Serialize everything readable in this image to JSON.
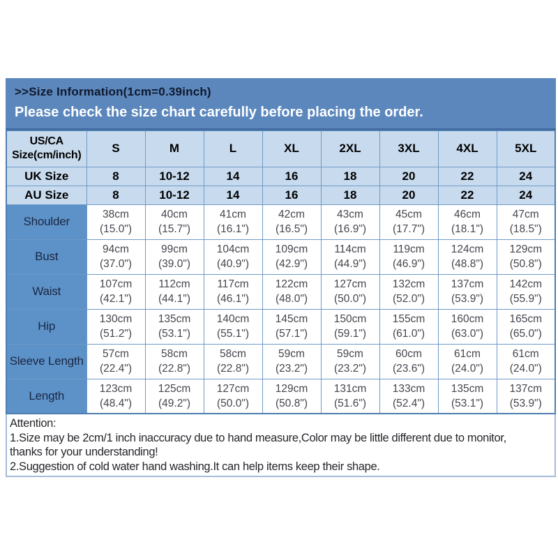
{
  "colors": {
    "banner_blue": "#5b87bd",
    "light_cell_blue": "#c8dbee",
    "label_cell_blue": "#5d92c9",
    "table_border_blue": "#6f9ac6",
    "notice_text": "#ffffff"
  },
  "banner": {
    "title": ">>Size Information(1cm=0.39inch)",
    "notice": "Please check the size chart carefully before placing the order."
  },
  "size_table": {
    "corner": {
      "line1": "US/CA",
      "line2": "Size(cm/inch)"
    },
    "columns": [
      "S",
      "M",
      "L",
      "XL",
      "2XL",
      "3XL",
      "4XL",
      "5XL"
    ],
    "region_rows": [
      {
        "label": "UK Size",
        "values": [
          "8",
          "10-12",
          "14",
          "16",
          "18",
          "20",
          "22",
          "24"
        ]
      },
      {
        "label": "AU Size",
        "values": [
          "8",
          "10-12",
          "14",
          "16",
          "18",
          "20",
          "22",
          "24"
        ]
      }
    ],
    "measurement_rows": [
      {
        "label": "Shoulder",
        "cm": [
          "38cm",
          "40cm",
          "41cm",
          "42cm",
          "43cm",
          "45cm",
          "46cm",
          "47cm"
        ],
        "inch": [
          "(15.0\")",
          "(15.7\")",
          "(16.1\")",
          "(16.5\")",
          "(16.9\")",
          "(17.7\")",
          "(18.1\")",
          "(18.5\")"
        ]
      },
      {
        "label": "Bust",
        "cm": [
          "94cm",
          "99cm",
          "104cm",
          "109cm",
          "114cm",
          "119cm",
          "124cm",
          "129cm"
        ],
        "inch": [
          "(37.0\")",
          "(39.0\")",
          "(40.9\")",
          "(42.9\")",
          "(44.9\")",
          "(46.9\")",
          "(48.8\")",
          "(50.8\")"
        ]
      },
      {
        "label": "Waist",
        "cm": [
          "107cm",
          "112cm",
          "117cm",
          "122cm",
          "127cm",
          "132cm",
          "137cm",
          "142cm"
        ],
        "inch": [
          "(42.1\")",
          "(44.1\")",
          "(46.1\")",
          "(48.0\")",
          "(50.0\")",
          "(52.0\")",
          "(53.9\")",
          "(55.9\")"
        ]
      },
      {
        "label": "Hip",
        "cm": [
          "130cm",
          "135cm",
          "140cm",
          "145cm",
          "150cm",
          "155cm",
          "160cm",
          "165cm"
        ],
        "inch": [
          "(51.2\")",
          "(53.1\")",
          "(55.1\")",
          "(57.1\")",
          "(59.1\")",
          "(61.0\")",
          "(63.0\")",
          "(65.0\")"
        ]
      },
      {
        "label": "Sleeve Length",
        "cm": [
          "57cm",
          "58cm",
          "58cm",
          "59cm",
          "59cm",
          "60cm",
          "61cm",
          "61cm"
        ],
        "inch": [
          "(22.4\")",
          "(22.8\")",
          "(22.8\")",
          "(23.2\")",
          "(23.2\")",
          "(23.6\")",
          "(24.0\")",
          "(24.0\")"
        ]
      },
      {
        "label": "Length",
        "cm": [
          "123cm",
          "125cm",
          "127cm",
          "129cm",
          "131cm",
          "133cm",
          "135cm",
          "137cm"
        ],
        "inch": [
          "(48.4\")",
          "(49.2\")",
          "(50.0\")",
          "(50.8\")",
          "(51.6\")",
          "(52.4\")",
          "(53.1\")",
          "(53.9\")"
        ]
      }
    ]
  },
  "attention": {
    "lines": [
      "Attention:",
      "1.Size may be 2cm/1 inch inaccuracy due to hand measure,Color may be little different due to monitor,",
      "thanks for your understanding!",
      "2.Suggestion of cold water hand washing.It can help items keep their shape."
    ]
  }
}
